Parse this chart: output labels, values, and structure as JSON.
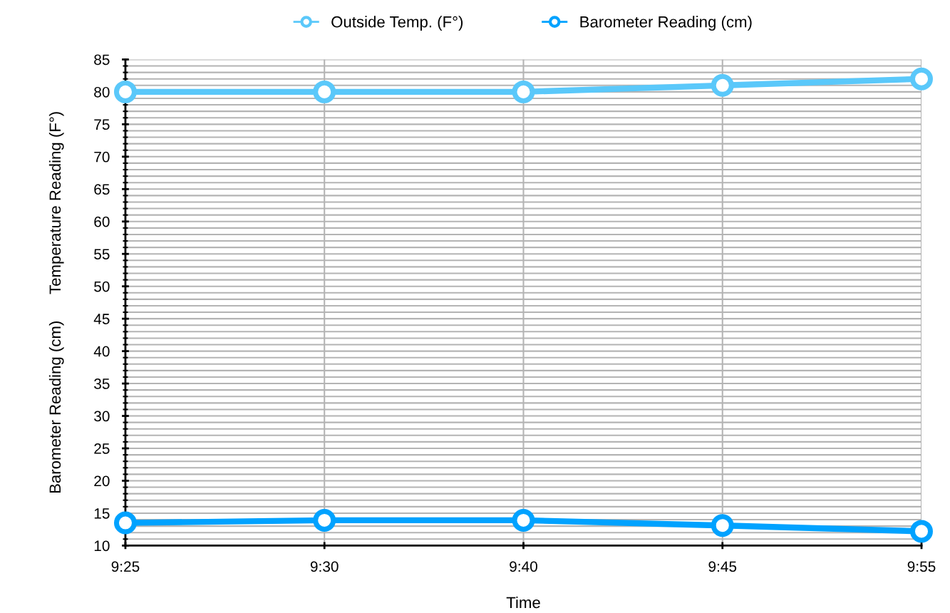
{
  "chart_data": {
    "type": "line",
    "xlabel": "Time",
    "ylabel": "Barometer Reading (cm)      Temperature Reading (F°)",
    "categories": [
      "9:25",
      "9:30",
      "9:40",
      "9:45",
      "9:55"
    ],
    "series": [
      {
        "name": "Outside Temp. (F°)",
        "color": "#5ac8fa",
        "values": [
          80,
          80,
          80,
          81,
          82
        ]
      },
      {
        "name": "Barometer Reading (cm)",
        "color": "#00a2ff",
        "values": [
          13.5,
          13.9,
          13.9,
          13.1,
          12.2
        ]
      }
    ],
    "ylim": [
      10,
      85
    ],
    "yticks": [
      10,
      15,
      20,
      25,
      30,
      35,
      40,
      45,
      50,
      55,
      60,
      65,
      70,
      75,
      80,
      85
    ],
    "grid": true,
    "legend": "top",
    "marker": "circle",
    "line_style": "solid"
  }
}
